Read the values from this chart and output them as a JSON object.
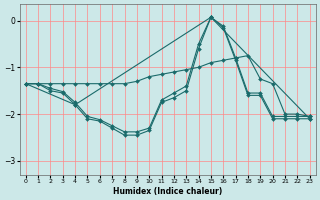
{
  "xlabel": "Humidex (Indice chaleur)",
  "bg_color": "#cce8e8",
  "line_color": "#1a6b6b",
  "grid_color": "#ff8888",
  "xlim": [
    -0.5,
    23.5
  ],
  "ylim": [
    -3.3,
    0.35
  ],
  "yticks": [
    0,
    -1,
    -2,
    -3
  ],
  "xticks": [
    0,
    1,
    2,
    3,
    4,
    5,
    6,
    7,
    8,
    9,
    10,
    11,
    12,
    13,
    14,
    15,
    16,
    17,
    18,
    19,
    20,
    21,
    22,
    23
  ],
  "line1_x": [
    0,
    1,
    2,
    3,
    4,
    5,
    6,
    7,
    8,
    9,
    10,
    11,
    12,
    13,
    14,
    15,
    16,
    17,
    18,
    19,
    20,
    21,
    22,
    23
  ],
  "line1_y": [
    -1.35,
    -1.35,
    -1.35,
    -1.35,
    -1.35,
    -1.35,
    -1.35,
    -1.35,
    -1.35,
    -1.3,
    -1.2,
    -1.15,
    -1.1,
    -1.05,
    -1.0,
    -0.9,
    -0.85,
    -0.8,
    -0.75,
    -1.25,
    -1.35,
    -2.0,
    -2.0,
    -2.05
  ],
  "line2_x": [
    0,
    1,
    2,
    3,
    4,
    5,
    6,
    7,
    8,
    9,
    10,
    11,
    12,
    13,
    14,
    15,
    16,
    17,
    18,
    19,
    20,
    21,
    22,
    23
  ],
  "line2_y": [
    -1.35,
    -1.35,
    -1.5,
    -1.55,
    -1.8,
    -2.1,
    -2.15,
    -2.3,
    -2.45,
    -2.45,
    -2.35,
    -1.75,
    -1.65,
    -1.5,
    -0.6,
    0.07,
    -0.15,
    -0.85,
    -1.6,
    -1.6,
    -2.1,
    -2.1,
    -2.1,
    -2.1
  ],
  "line3_x": [
    0,
    1,
    2,
    3,
    4,
    5,
    6,
    7,
    8,
    9,
    10,
    11,
    12,
    13,
    14,
    15,
    16,
    17,
    18,
    19,
    20,
    21,
    22,
    23
  ],
  "line3_y": [
    -1.35,
    -1.35,
    -1.45,
    -1.52,
    -1.75,
    -2.05,
    -2.12,
    -2.25,
    -2.38,
    -2.38,
    -2.3,
    -1.7,
    -1.55,
    -1.4,
    -0.5,
    0.07,
    -0.12,
    -0.8,
    -1.55,
    -1.55,
    -2.05,
    -2.05,
    -2.05,
    -2.05
  ],
  "line4_x": [
    0,
    4,
    15,
    23
  ],
  "line4_y": [
    -1.35,
    -1.8,
    0.07,
    -2.1
  ]
}
